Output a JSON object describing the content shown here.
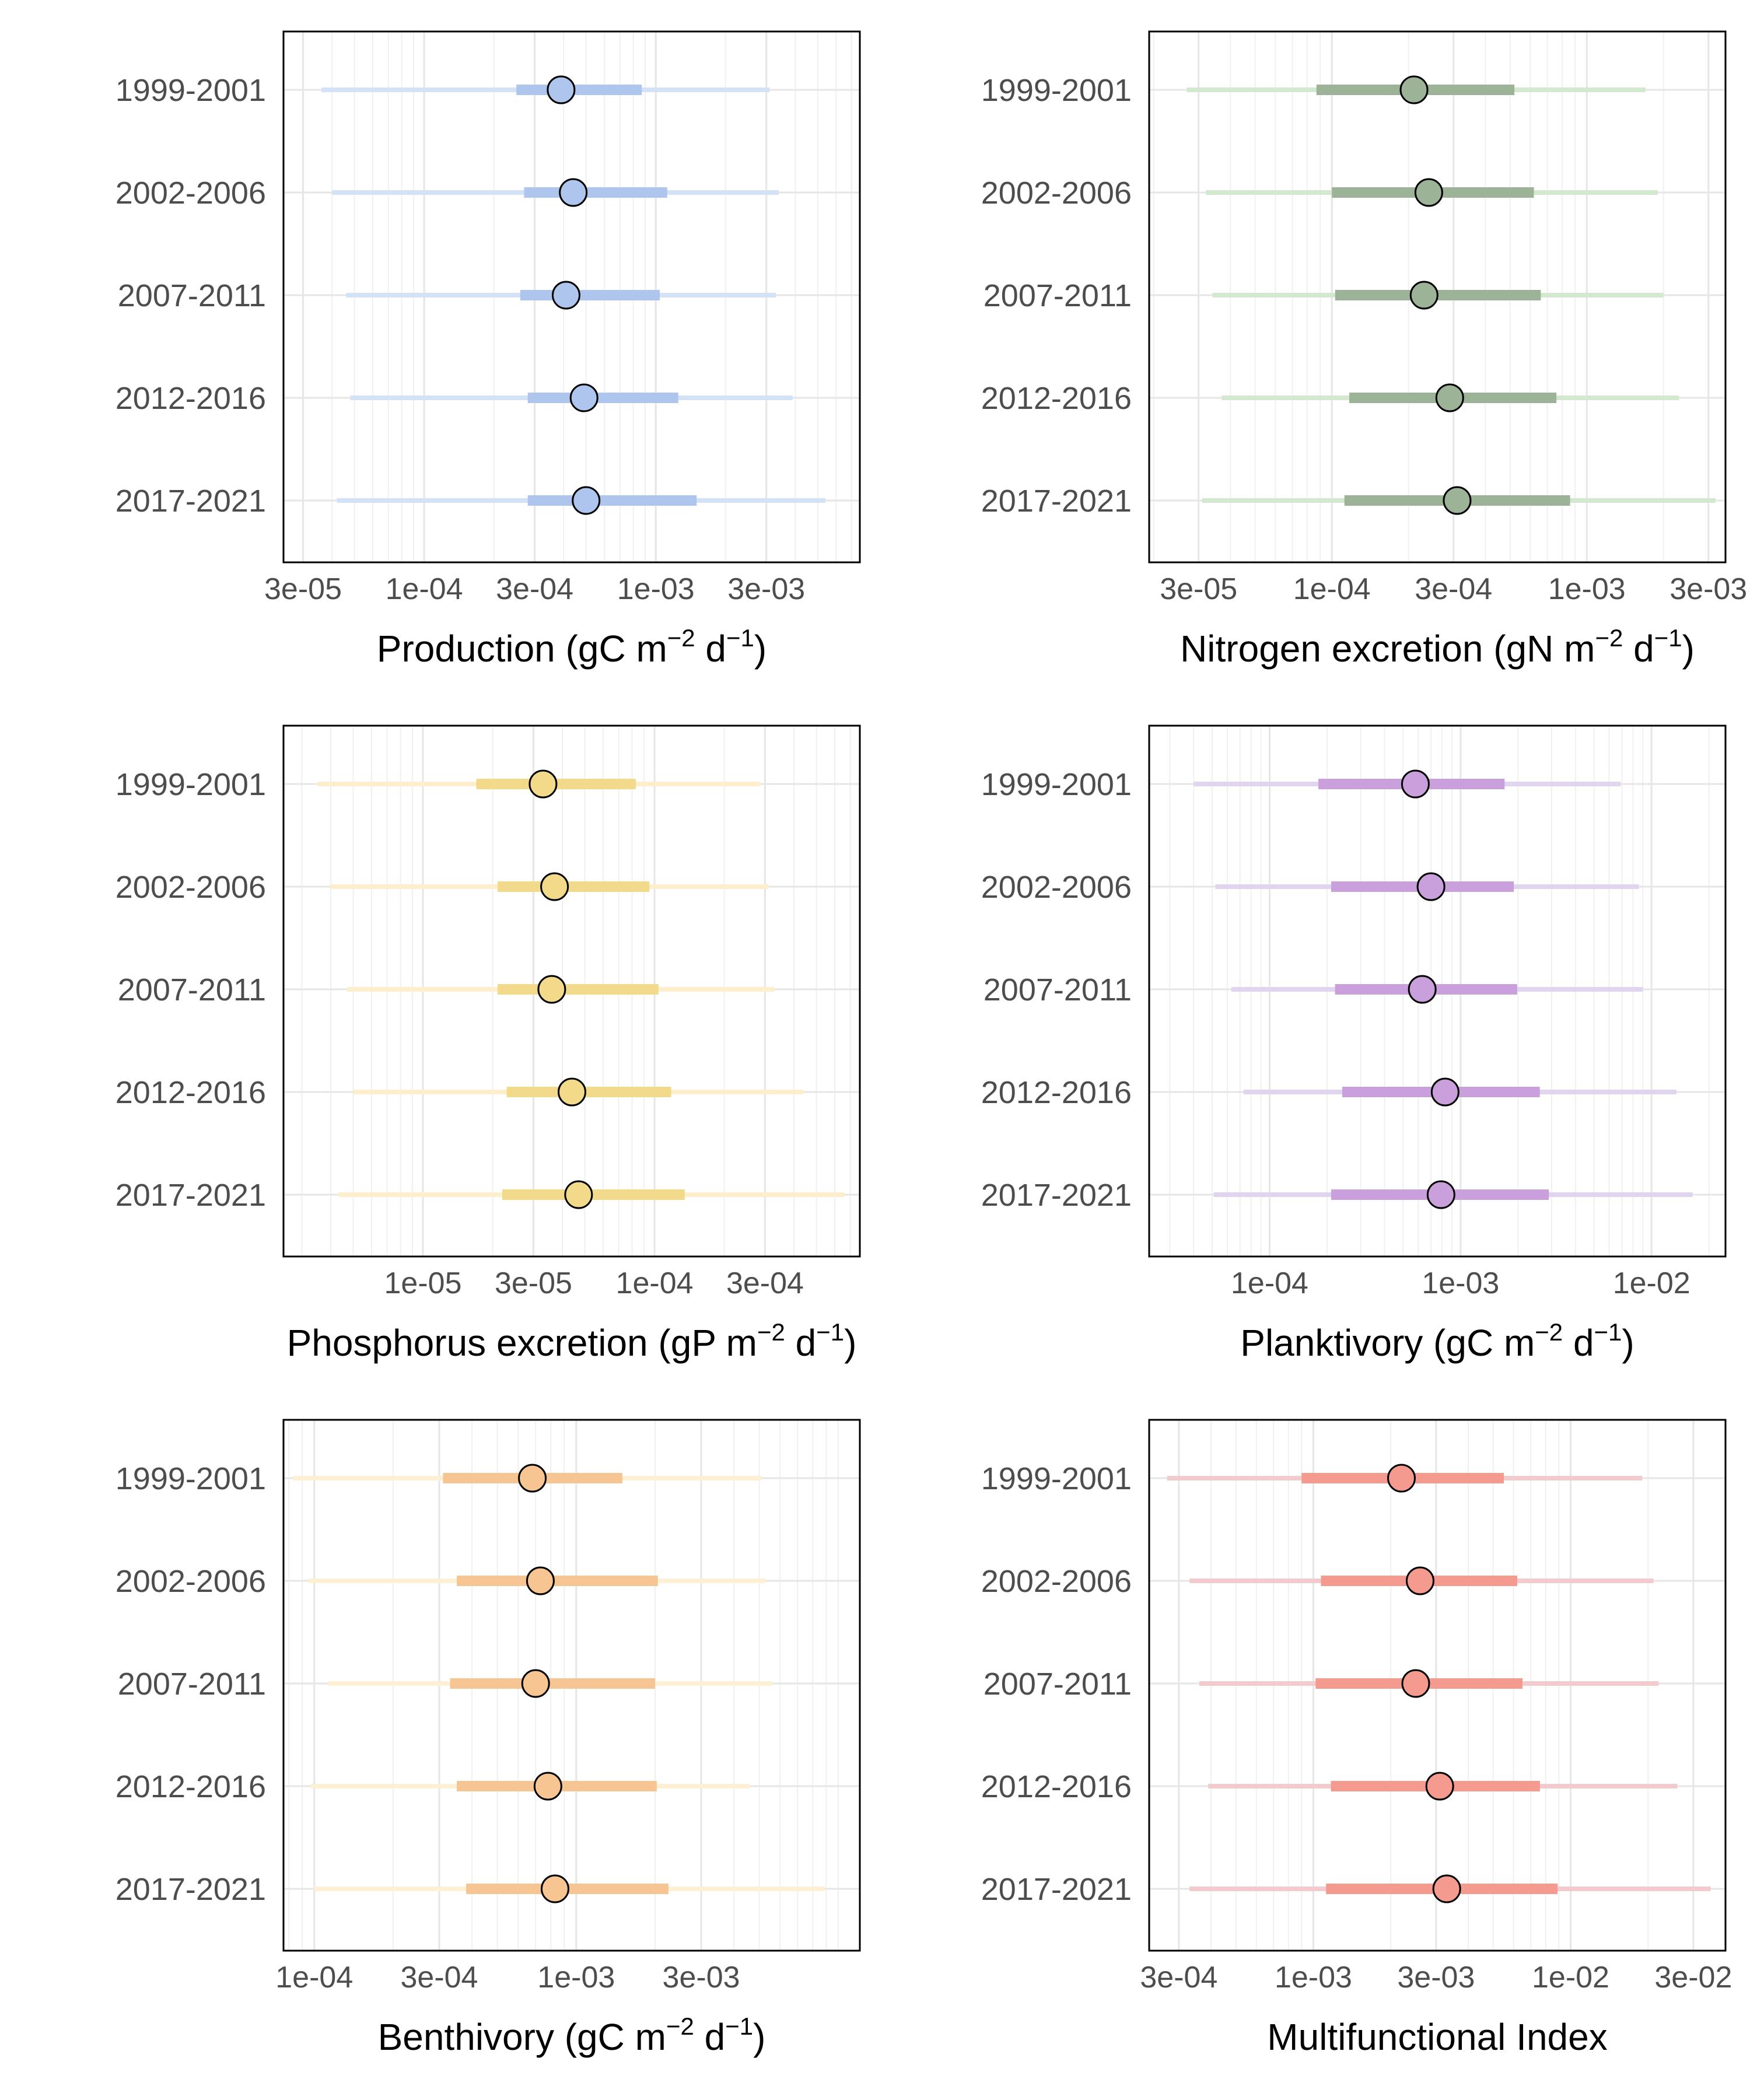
{
  "chart_data": [
    {
      "type": "interval",
      "xscale": "log10",
      "xlabel": {
        "text": "Production (gC m",
        "sup1": "−2",
        "mid": " d",
        "sup2": "−1",
        "end": ")"
      },
      "x_ticks": [
        {
          "value": 3e-05,
          "label": "3e-05"
        },
        {
          "value": 0.0001,
          "label": "1e-04"
        },
        {
          "value": 0.0003,
          "label": "3e-04"
        },
        {
          "value": 0.001,
          "label": "1e-03"
        },
        {
          "value": 0.003,
          "label": "3e-03"
        }
      ],
      "xlim": [
        2.47e-05,
        0.0076
      ],
      "colors": {
        "point": "#aec6ee",
        "inner": "#aec6ee",
        "outer": "#d3e2f6"
      },
      "series": [
        {
          "name": "1999-2001",
          "median": 0.00039,
          "inner": [
            0.00025,
            0.00087
          ],
          "outer": [
            3.6e-05,
            0.0031
          ]
        },
        {
          "name": "2002-2006",
          "median": 0.00044,
          "inner": [
            0.00027,
            0.00112
          ],
          "outer": [
            4e-05,
            0.0034
          ]
        },
        {
          "name": "2007-2011",
          "median": 0.00041,
          "inner": [
            0.00026,
            0.00104
          ],
          "outer": [
            4.6e-05,
            0.0033
          ]
        },
        {
          "name": "2012-2016",
          "median": 0.00049,
          "inner": [
            0.00028,
            0.00125
          ],
          "outer": [
            4.8e-05,
            0.0039
          ]
        },
        {
          "name": "2017-2021",
          "median": 0.0005,
          "inner": [
            0.00028,
            0.0015
          ],
          "outer": [
            4.2e-05,
            0.0054
          ]
        }
      ]
    },
    {
      "type": "interval",
      "xscale": "log10",
      "xlabel": {
        "text": "Nitrogen excretion (gN m",
        "sup1": "−2",
        "mid": " d",
        "sup2": "−1",
        "end": ")"
      },
      "x_ticks": [
        {
          "value": 3e-05,
          "label": "3e-05"
        },
        {
          "value": 0.0001,
          "label": "1e-04"
        },
        {
          "value": 0.0003,
          "label": "3e-04"
        },
        {
          "value": 0.001,
          "label": "1e-03"
        },
        {
          "value": 0.003,
          "label": "3e-03"
        }
      ],
      "xlim": [
        1.92e-05,
        0.0035
      ],
      "colors": {
        "point": "#9db397",
        "inner": "#9db397",
        "outer": "#d4e8cf"
      },
      "series": [
        {
          "name": "1999-2001",
          "median": 0.00021,
          "inner": [
            8.7e-05,
            0.00052
          ],
          "outer": [
            2.7e-05,
            0.0017
          ]
        },
        {
          "name": "2002-2006",
          "median": 0.00024,
          "inner": [
            0.0001,
            0.00062
          ],
          "outer": [
            3.2e-05,
            0.0019
          ]
        },
        {
          "name": "2007-2011",
          "median": 0.00023,
          "inner": [
            0.000103,
            0.00066
          ],
          "outer": [
            3.4e-05,
            0.002
          ]
        },
        {
          "name": "2012-2016",
          "median": 0.00029,
          "inner": [
            0.000117,
            0.00076
          ],
          "outer": [
            3.7e-05,
            0.0023
          ]
        },
        {
          "name": "2017-2021",
          "median": 0.00031,
          "inner": [
            0.000112,
            0.00086
          ],
          "outer": [
            3.1e-05,
            0.0032
          ]
        }
      ]
    },
    {
      "type": "interval",
      "xscale": "log10",
      "xlabel": {
        "text": "Phosphorus excretion (gP m",
        "sup1": "−2",
        "mid": " d",
        "sup2": "−1",
        "end": ")"
      },
      "x_ticks": [
        {
          "value": 1e-05,
          "label": "1e-05"
        },
        {
          "value": 3e-05,
          "label": "3e-05"
        },
        {
          "value": 0.0001,
          "label": "1e-04"
        },
        {
          "value": 0.0003,
          "label": "3e-04"
        }
      ],
      "xlim": [
        2.5e-06,
        0.00077
      ],
      "colors": {
        "point": "#f2da8a",
        "inner": "#f2da8a",
        "outer": "#fbf0cb"
      },
      "series": [
        {
          "name": "1999-2001",
          "median": 3.3e-05,
          "inner": [
            1.7e-05,
            8.3e-05
          ],
          "outer": [
            3.5e-06,
            0.000285
          ]
        },
        {
          "name": "2002-2006",
          "median": 3.7e-05,
          "inner": [
            2.1e-05,
            9.5e-05
          ],
          "outer": [
            4e-06,
            0.00031
          ]
        },
        {
          "name": "2007-2011",
          "median": 3.6e-05,
          "inner": [
            2.1e-05,
            0.000104
          ],
          "outer": [
            4.7e-06,
            0.00033
          ]
        },
        {
          "name": "2012-2016",
          "median": 4.4e-05,
          "inner": [
            2.3e-05,
            0.000118
          ],
          "outer": [
            5e-06,
            0.00044
          ]
        },
        {
          "name": "2017-2021",
          "median": 4.7e-05,
          "inner": [
            2.2e-05,
            0.000135
          ],
          "outer": [
            4.3e-06,
            0.00066
          ]
        }
      ]
    },
    {
      "type": "interval",
      "xscale": "log10",
      "xlabel": {
        "text": "Planktivory (gC m",
        "sup1": "−2",
        "mid": " d",
        "sup2": "−1",
        "end": ")"
      },
      "x_ticks": [
        {
          "value": 0.0001,
          "label": "1e-04"
        },
        {
          "value": 0.001,
          "label": "1e-03"
        },
        {
          "value": 0.01,
          "label": "1e-02"
        }
      ],
      "xlim": [
        2.34e-05,
        0.0244
      ],
      "colors": {
        "point": "#c9a0dc",
        "inner": "#c9a0dc",
        "outer": "#e0d4ee"
      },
      "series": [
        {
          "name": "1999-2001",
          "median": 0.00058,
          "inner": [
            0.00018,
            0.0017
          ],
          "outer": [
            4e-05,
            0.0069
          ]
        },
        {
          "name": "2002-2006",
          "median": 0.0007,
          "inner": [
            0.00021,
            0.0019
          ],
          "outer": [
            5.2e-05,
            0.0086
          ]
        },
        {
          "name": "2007-2011",
          "median": 0.00063,
          "inner": [
            0.00022,
            0.00198
          ],
          "outer": [
            6.3e-05,
            0.009
          ]
        },
        {
          "name": "2012-2016",
          "median": 0.00083,
          "inner": [
            0.00024,
            0.0026
          ],
          "outer": [
            7.3e-05,
            0.0135
          ]
        },
        {
          "name": "2017-2021",
          "median": 0.00079,
          "inner": [
            0.00021,
            0.0029
          ],
          "outer": [
            5.1e-05,
            0.0164
          ]
        }
      ]
    },
    {
      "type": "interval",
      "xscale": "log10",
      "xlabel": {
        "text": "Benthivory (gC m",
        "sup1": "−2",
        "mid": " d",
        "sup2": "−1",
        "end": ")"
      },
      "x_ticks": [
        {
          "value": 0.0001,
          "label": "1e-04"
        },
        {
          "value": 0.0003,
          "label": "3e-04"
        },
        {
          "value": 0.001,
          "label": "1e-03"
        },
        {
          "value": 0.003,
          "label": "3e-03"
        }
      ],
      "xlim": [
        7.63e-05,
        0.0121
      ],
      "colors": {
        "point": "#f6c591",
        "inner": "#f6c591",
        "outer": "#fcf1d4"
      },
      "series": [
        {
          "name": "1999-2001",
          "median": 0.00068,
          "inner": [
            0.00031,
            0.0015
          ],
          "outer": [
            8.3e-05,
            0.0051
          ]
        },
        {
          "name": "2002-2006",
          "median": 0.00073,
          "inner": [
            0.00035,
            0.00205
          ],
          "outer": [
            9.5e-05,
            0.0053
          ]
        },
        {
          "name": "2007-2011",
          "median": 0.0007,
          "inner": [
            0.00033,
            0.002
          ],
          "outer": [
            0.000113,
            0.0056
          ]
        },
        {
          "name": "2012-2016",
          "median": 0.00078,
          "inner": [
            0.00035,
            0.00203
          ],
          "outer": [
            9.7e-05,
            0.0046
          ]
        },
        {
          "name": "2017-2021",
          "median": 0.00083,
          "inner": [
            0.00038,
            0.00225
          ],
          "outer": [
            0.0001,
            0.0089
          ]
        }
      ]
    },
    {
      "type": "interval",
      "xscale": "log10",
      "xlabel": {
        "text": "Multifunctional Index"
      },
      "x_ticks": [
        {
          "value": 0.0003,
          "label": "3e-04"
        },
        {
          "value": 0.001,
          "label": "1e-03"
        },
        {
          "value": 0.003,
          "label": "3e-03"
        },
        {
          "value": 0.01,
          "label": "1e-02"
        },
        {
          "value": 0.03,
          "label": "3e-02"
        }
      ],
      "xlim": [
        0.00023,
        0.04
      ],
      "colors": {
        "point": "#f59a8e",
        "inner": "#f59a8e",
        "outer": "#f2cccc"
      },
      "series": [
        {
          "name": "1999-2001",
          "median": 0.0022,
          "inner": [
            0.0009,
            0.0055
          ],
          "outer": [
            0.00027,
            0.019
          ]
        },
        {
          "name": "2002-2006",
          "median": 0.0026,
          "inner": [
            0.00107,
            0.0062
          ],
          "outer": [
            0.00033,
            0.021
          ]
        },
        {
          "name": "2007-2011",
          "median": 0.0025,
          "inner": [
            0.00102,
            0.0065
          ],
          "outer": [
            0.00036,
            0.022
          ]
        },
        {
          "name": "2012-2016",
          "median": 0.0031,
          "inner": [
            0.00117,
            0.0076
          ],
          "outer": [
            0.00039,
            0.026
          ]
        },
        {
          "name": "2017-2021",
          "median": 0.0033,
          "inner": [
            0.00112,
            0.0089
          ],
          "outer": [
            0.00033,
            0.035
          ]
        }
      ]
    }
  ]
}
